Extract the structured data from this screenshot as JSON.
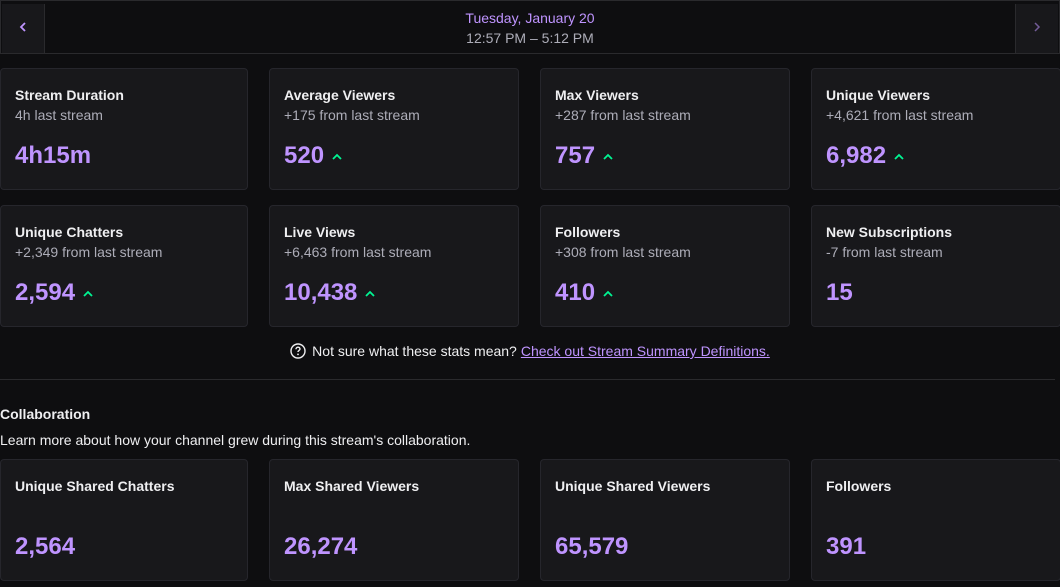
{
  "header": {
    "date": "Tuesday, January 20",
    "time_range": "12:57 PM – 5:12 PM",
    "prev_icon": "chevron-left-icon",
    "next_icon": "chevron-right-icon"
  },
  "stats": [
    {
      "title": "Stream Duration",
      "sub": "4h last stream",
      "value": "4h15m",
      "trend": "none"
    },
    {
      "title": "Average Viewers",
      "sub": "+175 from last stream",
      "value": "520",
      "trend": "up"
    },
    {
      "title": "Max Viewers",
      "sub": "+287 from last stream",
      "value": "757",
      "trend": "up"
    },
    {
      "title": "Unique Viewers",
      "sub": "+4,621 from last stream",
      "value": "6,982",
      "trend": "up"
    },
    {
      "title": "Unique Chatters",
      "sub": "+2,349 from last stream",
      "value": "2,594",
      "trend": "up"
    },
    {
      "title": "Live Views",
      "sub": "+6,463 from last stream",
      "value": "10,438",
      "trend": "up"
    },
    {
      "title": "Followers",
      "sub": "+308 from last stream",
      "value": "410",
      "trend": "up"
    },
    {
      "title": "New Subscriptions",
      "sub": "-7 from last stream",
      "value": "15",
      "trend": "none"
    }
  ],
  "help": {
    "text": "Not sure what these stats mean?",
    "link": "Check out Stream Summary Definitions.",
    "icon": "question-circle-icon"
  },
  "collaboration": {
    "title": "Collaboration",
    "description": "Learn more about how your channel grew during this stream's collaboration.",
    "stats": [
      {
        "title": "Unique Shared Chatters",
        "value": "2,564"
      },
      {
        "title": "Max Shared Viewers",
        "value": "26,274"
      },
      {
        "title": "Unique Shared Viewers",
        "value": "65,579"
      },
      {
        "title": "Followers",
        "value": "391"
      }
    ]
  },
  "colors": {
    "accent": "#bf94ff",
    "trend_up": "#00f593",
    "card_bg": "#18181b",
    "page_bg": "#0e0e10"
  }
}
